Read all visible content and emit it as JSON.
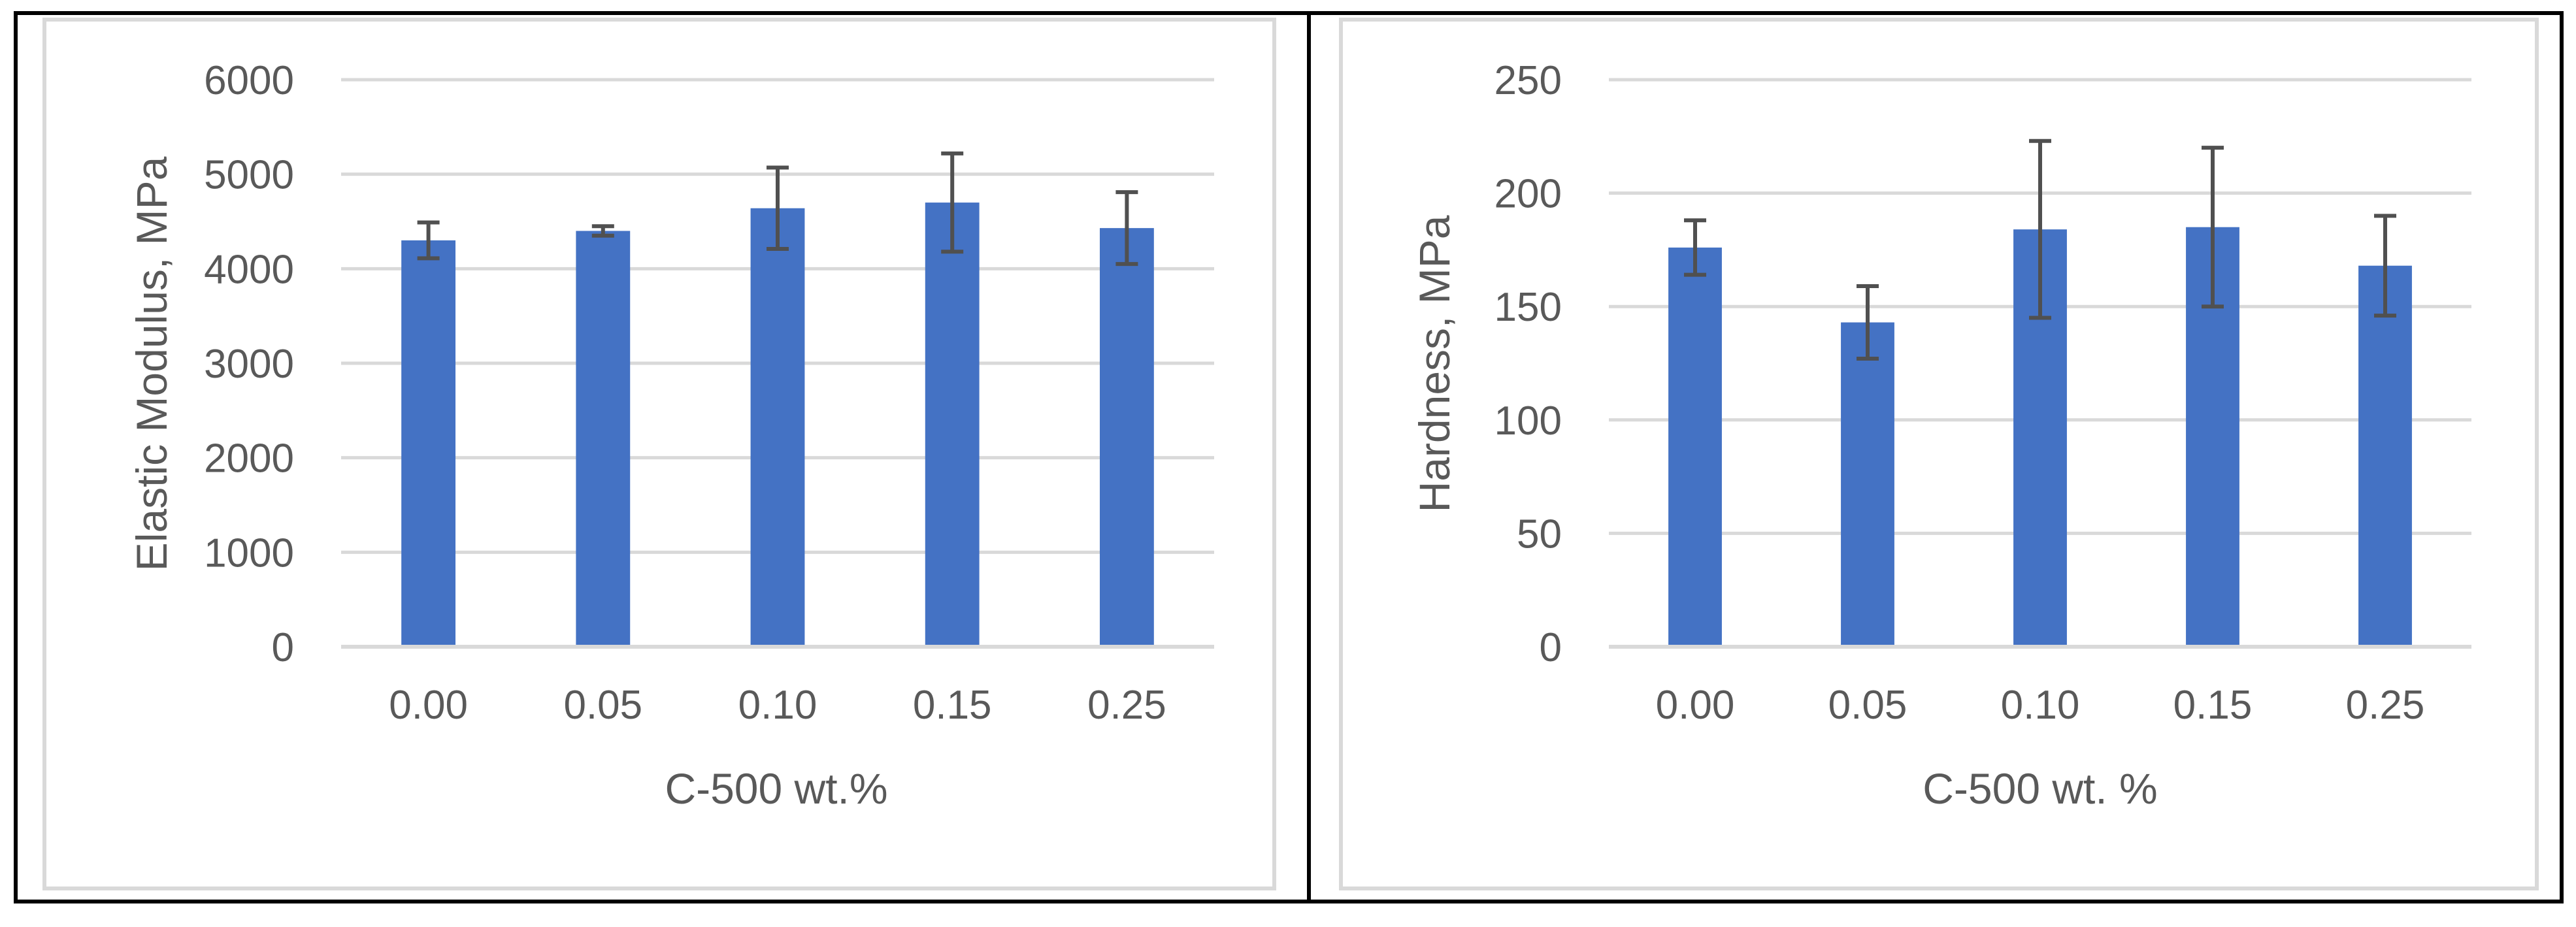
{
  "colors": {
    "bar": "#4472C4",
    "error_bar": "#505050",
    "gridline": "#D9D9D9",
    "axis_line": "#D9D9D9",
    "text": "#595959",
    "panel_border": "#D9D9D9",
    "outer_border": "#000000"
  },
  "chart_data": [
    {
      "type": "bar",
      "title": "",
      "categories": [
        "0.00",
        "0.05",
        "0.10",
        "0.15",
        "0.25"
      ],
      "values": [
        4300,
        4400,
        4640,
        4700,
        4430
      ],
      "errors": [
        190,
        50,
        430,
        520,
        380
      ],
      "xlabel": "C-500 wt.%",
      "ylabel": "Elastic Modulus, MPa",
      "ylim": [
        0,
        6000
      ],
      "yticks": [
        0,
        1000,
        2000,
        3000,
        4000,
        5000,
        6000
      ],
      "grid": true,
      "legend": "none"
    },
    {
      "type": "bar",
      "title": "",
      "categories": [
        "0.00",
        "0.05",
        "0.10",
        "0.15",
        "0.25"
      ],
      "values": [
        176,
        143,
        184,
        185,
        168
      ],
      "errors": [
        12,
        16,
        39,
        35,
        22
      ],
      "xlabel": "C-500 wt. %",
      "ylabel": "Hardness, MPa",
      "ylim": [
        0,
        250
      ],
      "yticks": [
        0,
        50,
        100,
        150,
        200,
        250
      ],
      "grid": true,
      "legend": "none"
    }
  ]
}
